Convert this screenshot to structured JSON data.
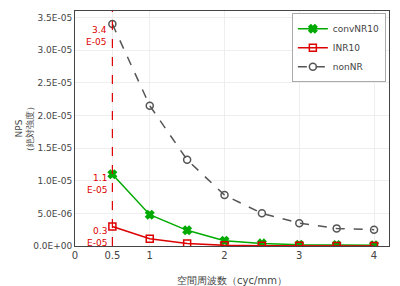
{
  "chart_data": {
    "type": "line",
    "x_label": "空間周波数（cyc/mm）",
    "y_label": "NPS\n（絶対強度）",
    "series": [
      {
        "name": "convNR10",
        "color": "#00aa00",
        "marker": "x",
        "line_style": "solid",
        "x": [
          0.5,
          1.0,
          1.5,
          2.0,
          2.5,
          3.0,
          3.5,
          4.0
        ],
        "values": [
          1.1e-05,
          4.8e-06,
          2.4e-06,
          8e-07,
          4e-07,
          2e-07,
          1.5e-07,
          1e-07
        ]
      },
      {
        "name": "INR10",
        "color": "#dd0000",
        "marker": "square-open",
        "line_style": "solid",
        "x": [
          0.5,
          1.0,
          1.5,
          2.0,
          2.5,
          3.0,
          3.5,
          4.0
        ],
        "values": [
          3e-06,
          1.1e-06,
          4e-07,
          1e-07,
          5e-08,
          2e-08,
          1e-08,
          8e-09
        ]
      },
      {
        "name": "nonNR",
        "color": "#555555",
        "marker": "circle-open",
        "line_style": "dashed",
        "x": [
          0.5,
          1.0,
          1.5,
          2.0,
          2.5,
          3.0,
          3.5,
          4.0
        ],
        "values": [
          3.4e-05,
          2.15e-05,
          1.32e-05,
          7.8e-06,
          5e-06,
          3.5e-06,
          2.7e-06,
          2.5e-06
        ]
      }
    ],
    "reference_lines": [
      {
        "x": 0.5,
        "color": "#dd0000",
        "line_style": "dashed"
      }
    ],
    "annotations": [
      {
        "text": "3.4\nE-05",
        "x": 0.46,
        "y": 3.42e-05,
        "color": "#dd0000"
      },
      {
        "text": "1.1\nE-05",
        "x": 0.46,
        "y": 1.15e-05,
        "color": "#dd0000"
      },
      {
        "text": "0.3\nE-05",
        "x": 0.46,
        "y": 3.4e-06,
        "color": "#dd0000"
      }
    ],
    "xlim": [
      0,
      4.2
    ],
    "ylim": [
      0,
      3.6e-05
    ],
    "xticks": [
      0,
      0.5,
      1,
      2,
      3,
      4
    ],
    "yticks": [
      {
        "value": 0,
        "label": "0.0E+00"
      },
      {
        "value": 5e-06,
        "label": "5.0E-06"
      },
      {
        "value": 1e-05,
        "label": "1.0E-05"
      },
      {
        "value": 1.5e-05,
        "label": "1.5E-05"
      },
      {
        "value": 2e-05,
        "label": "2.0E-05"
      },
      {
        "value": 2.5e-05,
        "label": "2.5E-05"
      },
      {
        "value": 3e-05,
        "label": "3.0E-05"
      },
      {
        "value": 3.5e-05,
        "label": "3.5E-05"
      }
    ],
    "grid": true,
    "legend": "upper right"
  }
}
